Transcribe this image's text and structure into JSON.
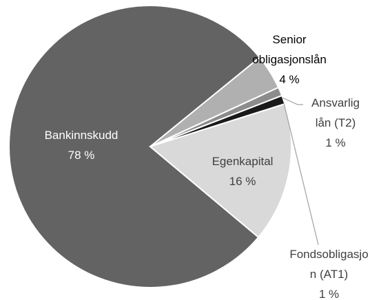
{
  "chart_data": {
    "type": "pie",
    "categories": [
      "Egenkapital",
      "Bankinnskudd",
      "Senior obligasjonslån",
      "Ansvarlig lån (T2)",
      "Fondsobligasjon (AT1)"
    ],
    "values": [
      16,
      78,
      4,
      1,
      1
    ],
    "value_labels": [
      "16 %",
      "78 %",
      "4 %",
      "1 %",
      "1 %"
    ],
    "colors": [
      "#d9d9d9",
      "#636363",
      "#b0b0b0",
      "#8c8c8c",
      "#1a1a1a"
    ]
  }
}
